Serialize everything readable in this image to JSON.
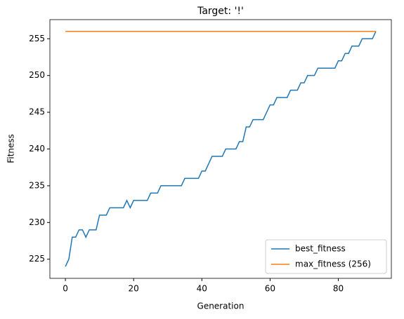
{
  "chart_data": {
    "type": "line",
    "title": "Target: '!'",
    "xlabel": "Generation",
    "ylabel": "Fitness",
    "x": [
      0,
      1,
      2,
      3,
      4,
      5,
      6,
      7,
      8,
      9,
      10,
      11,
      12,
      13,
      14,
      15,
      16,
      17,
      18,
      19,
      20,
      21,
      22,
      23,
      24,
      25,
      26,
      27,
      28,
      29,
      30,
      31,
      32,
      33,
      34,
      35,
      36,
      37,
      38,
      39,
      40,
      41,
      42,
      43,
      44,
      45,
      46,
      47,
      48,
      49,
      50,
      51,
      52,
      53,
      54,
      55,
      56,
      57,
      58,
      59,
      60,
      61,
      62,
      63,
      64,
      65,
      66,
      67,
      68,
      69,
      70,
      71,
      72,
      73,
      74,
      75,
      76,
      77,
      78,
      79,
      80,
      81,
      82,
      83,
      84,
      85,
      86,
      87,
      88,
      89,
      90,
      91
    ],
    "series": [
      {
        "name": "best_fitness",
        "color": "#1f77b4",
        "values": [
          224,
          225,
          228,
          228,
          229,
          229,
          228,
          229,
          229,
          229,
          231,
          231,
          231,
          232,
          232,
          232,
          232,
          232,
          233,
          232,
          233,
          233,
          233,
          233,
          233,
          234,
          234,
          234,
          235,
          235,
          235,
          235,
          235,
          235,
          235,
          236,
          236,
          236,
          236,
          236,
          237,
          237,
          238,
          239,
          239,
          239,
          239,
          240,
          240,
          240,
          240,
          241,
          241,
          243,
          243,
          244,
          244,
          244,
          244,
          245,
          246,
          246,
          247,
          247,
          247,
          247,
          248,
          248,
          248,
          249,
          249,
          250,
          250,
          250,
          251,
          251,
          251,
          251,
          251,
          251,
          252,
          252,
          253,
          253,
          254,
          254,
          254,
          255,
          255,
          255,
          255,
          256
        ]
      },
      {
        "name": "max_fitness (256)",
        "color": "#ff7f0e",
        "values": [
          256,
          256,
          256,
          256,
          256,
          256,
          256,
          256,
          256,
          256,
          256,
          256,
          256,
          256,
          256,
          256,
          256,
          256,
          256,
          256,
          256,
          256,
          256,
          256,
          256,
          256,
          256,
          256,
          256,
          256,
          256,
          256,
          256,
          256,
          256,
          256,
          256,
          256,
          256,
          256,
          256,
          256,
          256,
          256,
          256,
          256,
          256,
          256,
          256,
          256,
          256,
          256,
          256,
          256,
          256,
          256,
          256,
          256,
          256,
          256,
          256,
          256,
          256,
          256,
          256,
          256,
          256,
          256,
          256,
          256,
          256,
          256,
          256,
          256,
          256,
          256,
          256,
          256,
          256,
          256,
          256,
          256,
          256,
          256,
          256,
          256,
          256,
          256,
          256,
          256,
          256,
          256
        ]
      }
    ],
    "xlim": [
      -4.55,
      95.55
    ],
    "xticks": [
      0,
      20,
      40,
      60,
      80
    ],
    "ylim": [
      222.4,
      257.6
    ],
    "yticks": [
      225,
      230,
      235,
      240,
      245,
      250,
      255
    ],
    "grid": false,
    "legend": "lower right"
  }
}
